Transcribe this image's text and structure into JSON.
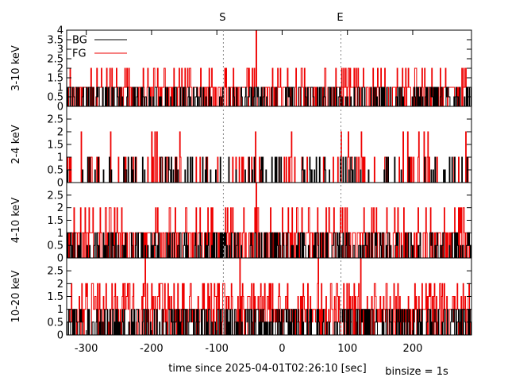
{
  "chart_data": {
    "type": "line",
    "style": "step histogram, four stacked panels sharing one time axis",
    "xlabel": "time since 2025-04-01T02:26:10 [sec]",
    "note": "binsize = 1s",
    "xlim": [
      -330,
      290
    ],
    "x_ticks": [
      -300,
      -200,
      -100,
      0,
      100,
      200
    ],
    "markers": [
      {
        "label": "S",
        "x": -90
      },
      {
        "label": "E",
        "x": 90
      }
    ],
    "legend": {
      "placement": "top-left",
      "entries": [
        {
          "name": "BG",
          "color": "#000000"
        },
        {
          "name": "FG",
          "color": "#ee0000"
        }
      ]
    },
    "colors": {
      "BG": "#000000",
      "FG": "#ee0000",
      "marker": "#888888"
    },
    "panels": [
      {
        "ylabel": "3-10 keV",
        "ylim": [
          0,
          4
        ],
        "y_ticks": [
          "0",
          "0.5",
          "1",
          "1.5",
          "2",
          "2.5",
          "3",
          "3.5",
          "4"
        ],
        "fg_profile": {
          "rate": 0.62,
          "vals": [
            1,
            1,
            1,
            1,
            2
          ],
          "peaks": [
            {
              "x": -40,
              "y": 4
            },
            {
              "x": 290,
              "y": 3
            }
          ]
        },
        "bg_profile": {
          "rate": 0.35,
          "vals": [
            0.5,
            1,
            1
          ]
        }
      },
      {
        "ylabel": "2-4 keV",
        "ylim": [
          0,
          3
        ],
        "y_ticks": [
          "0",
          "0.5",
          "1",
          "1.5",
          "2",
          "2.5"
        ],
        "fg_profile": {
          "rate": 0.16,
          "vals": [
            1,
            1,
            1,
            1,
            1,
            1,
            1,
            2
          ]
        },
        "bg_profile": {
          "rate": 0.14,
          "vals": [
            0.5,
            1
          ]
        }
      },
      {
        "ylabel": "4-10 keV",
        "ylim": [
          0,
          3
        ],
        "y_ticks": [
          "0",
          "0.5",
          "1",
          "1.5",
          "2",
          "2.5"
        ],
        "fg_profile": {
          "rate": 0.55,
          "vals": [
            1,
            1,
            1,
            1,
            2
          ],
          "peaks": [
            {
              "x": -40,
              "y": 3
            }
          ]
        },
        "bg_profile": {
          "rate": 0.32,
          "vals": [
            0.5,
            1
          ]
        }
      },
      {
        "ylabel": "10-20 keV",
        "ylim": [
          0,
          3
        ],
        "y_ticks": [
          "0",
          "0.5",
          "1",
          "1.5",
          "2",
          "2.5"
        ],
        "fg_profile": {
          "rate": 0.7,
          "vals": [
            0.5,
            1,
            1,
            1.5,
            2
          ],
          "peaks": [
            {
              "x": -210,
              "y": 3
            },
            {
              "x": -65,
              "y": 3
            },
            {
              "x": 120,
              "y": 3
            },
            {
              "x": 55,
              "y": 3
            }
          ]
        },
        "bg_profile": {
          "rate": 0.45,
          "vals": [
            0.5,
            1,
            1
          ]
        }
      }
    ]
  }
}
